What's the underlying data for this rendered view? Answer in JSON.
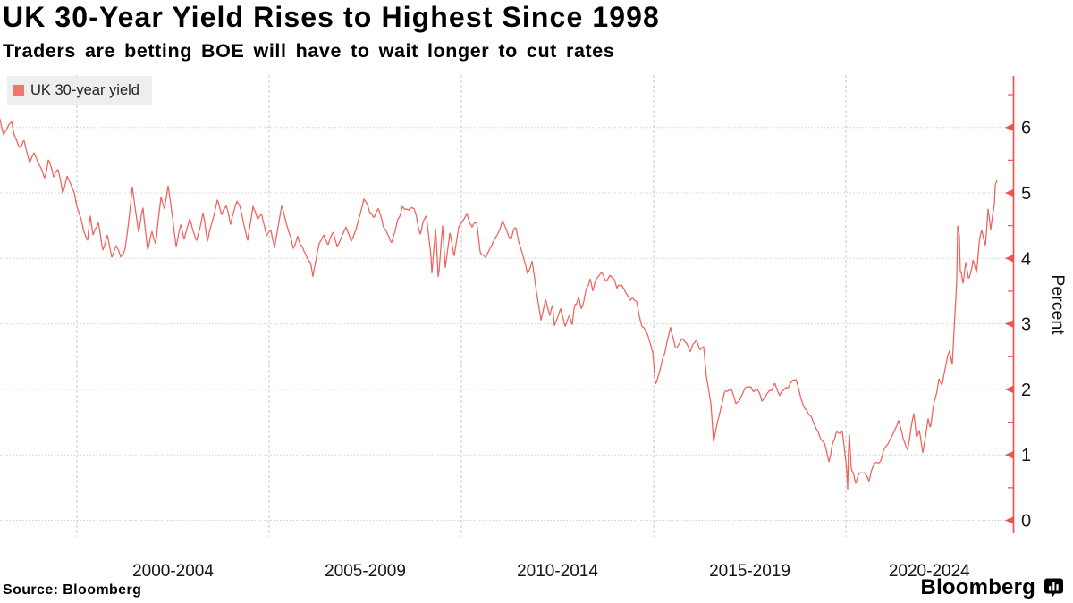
{
  "header": {
    "title": "UK 30-Year Yield Rises to Highest Since 1998",
    "subtitle": "Traders are betting BOE will have to wait longer to cut rates"
  },
  "legend": {
    "label": "UK 30-year yield",
    "color": "#f3736d"
  },
  "footer": {
    "source": "Source:  Bloomberg",
    "brand": "Bloomberg"
  },
  "chart_data": {
    "type": "line",
    "title": "UK 30-year yield",
    "ylabel": "Percent",
    "xlabel": "",
    "grid": "dotted-horizontal-dashed-vertical",
    "legend_position": "top-left",
    "ylim": [
      -0.2,
      6.8
    ],
    "x_range": [
      1998.0,
      2024.4
    ],
    "y_ticks": [
      0,
      1,
      2,
      3,
      4,
      5,
      6
    ],
    "y_minor_tick_step": 0.5,
    "x_gridline_years": [
      2000,
      2005,
      2010,
      2015,
      2020
    ],
    "x_tick_labels": [
      {
        "label": "2000-2004",
        "center_year": 2002.5
      },
      {
        "label": "2005-2009",
        "center_year": 2007.5
      },
      {
        "label": "2010-2014",
        "center_year": 2012.5
      },
      {
        "label": "2015-2019",
        "center_year": 2017.5
      },
      {
        "label": "2020-2024",
        "center_year": 2022.17
      }
    ],
    "axis_color": "#f0524c",
    "series": [
      {
        "name": "UK 30-year yield",
        "color": "#f1605b",
        "points": [
          [
            1998.0,
            6.18
          ],
          [
            1998.09,
            5.93
          ],
          [
            1998.19,
            6.04
          ],
          [
            1998.3,
            6.08
          ],
          [
            1998.42,
            5.8
          ],
          [
            1998.53,
            5.7
          ],
          [
            1998.63,
            5.79
          ],
          [
            1998.77,
            5.46
          ],
          [
            1998.88,
            5.6
          ],
          [
            1999.0,
            5.45
          ],
          [
            1999.16,
            5.26
          ],
          [
            1999.26,
            5.56
          ],
          [
            1999.4,
            5.29
          ],
          [
            1999.51,
            5.4
          ],
          [
            1999.63,
            5.06
          ],
          [
            1999.74,
            5.26
          ],
          [
            1999.93,
            4.95
          ],
          [
            2000.05,
            4.74
          ],
          [
            2000.16,
            4.5
          ],
          [
            2000.28,
            4.26
          ],
          [
            2000.35,
            4.67
          ],
          [
            2000.42,
            4.38
          ],
          [
            2000.56,
            4.54
          ],
          [
            2000.67,
            4.08
          ],
          [
            2000.79,
            4.33
          ],
          [
            2000.91,
            4.01
          ],
          [
            2001.02,
            4.22
          ],
          [
            2001.14,
            4.03
          ],
          [
            2001.26,
            4.15
          ],
          [
            2001.44,
            5.08
          ],
          [
            2001.6,
            4.38
          ],
          [
            2001.72,
            4.78
          ],
          [
            2001.84,
            4.17
          ],
          [
            2001.95,
            4.45
          ],
          [
            2002.05,
            4.25
          ],
          [
            2002.19,
            4.95
          ],
          [
            2002.28,
            4.75
          ],
          [
            2002.37,
            5.12
          ],
          [
            2002.49,
            4.6
          ],
          [
            2002.58,
            4.17
          ],
          [
            2002.7,
            4.45
          ],
          [
            2002.79,
            4.28
          ],
          [
            2002.93,
            4.57
          ],
          [
            2003.12,
            4.25
          ],
          [
            2003.28,
            4.69
          ],
          [
            2003.4,
            4.26
          ],
          [
            2003.65,
            4.92
          ],
          [
            2003.77,
            4.7
          ],
          [
            2003.88,
            4.85
          ],
          [
            2004.0,
            4.57
          ],
          [
            2004.16,
            4.92
          ],
          [
            2004.28,
            4.7
          ],
          [
            2004.44,
            4.28
          ],
          [
            2004.58,
            4.81
          ],
          [
            2004.7,
            4.6
          ],
          [
            2004.81,
            4.7
          ],
          [
            2004.93,
            4.33
          ],
          [
            2005.05,
            4.44
          ],
          [
            2005.14,
            4.17
          ],
          [
            2005.33,
            4.79
          ],
          [
            2005.51,
            4.4
          ],
          [
            2005.63,
            4.17
          ],
          [
            2005.74,
            4.35
          ],
          [
            2005.91,
            4.08
          ],
          [
            2006.07,
            3.92
          ],
          [
            2006.14,
            3.68
          ],
          [
            2006.3,
            4.26
          ],
          [
            2006.42,
            4.38
          ],
          [
            2006.53,
            4.2
          ],
          [
            2006.67,
            4.4
          ],
          [
            2006.77,
            4.17
          ],
          [
            2007.0,
            4.44
          ],
          [
            2007.14,
            4.2
          ],
          [
            2007.3,
            4.5
          ],
          [
            2007.47,
            4.95
          ],
          [
            2007.7,
            4.65
          ],
          [
            2007.84,
            4.74
          ],
          [
            2008.05,
            4.4
          ],
          [
            2008.19,
            4.23
          ],
          [
            2008.47,
            4.77
          ],
          [
            2008.63,
            4.67
          ],
          [
            2008.77,
            4.79
          ],
          [
            2008.93,
            4.46
          ],
          [
            2009.09,
            4.71
          ],
          [
            2009.21,
            4.08
          ],
          [
            2009.23,
            3.83
          ],
          [
            2009.33,
            4.54
          ],
          [
            2009.4,
            3.72
          ],
          [
            2009.51,
            4.58
          ],
          [
            2009.58,
            3.9
          ],
          [
            2009.7,
            4.4
          ],
          [
            2009.81,
            4.02
          ],
          [
            2009.93,
            4.51
          ],
          [
            2010.09,
            4.63
          ],
          [
            2010.14,
            4.72
          ],
          [
            2010.28,
            4.5
          ],
          [
            2010.4,
            4.6
          ],
          [
            2010.49,
            4.17
          ],
          [
            2010.63,
            4.05
          ],
          [
            2010.79,
            4.2
          ],
          [
            2010.93,
            4.4
          ],
          [
            2011.07,
            4.63
          ],
          [
            2011.3,
            4.31
          ],
          [
            2011.42,
            4.45
          ],
          [
            2011.49,
            4.23
          ],
          [
            2011.6,
            4.0
          ],
          [
            2011.72,
            3.72
          ],
          [
            2011.84,
            3.88
          ],
          [
            2011.95,
            3.45
          ],
          [
            2012.07,
            3.06
          ],
          [
            2012.19,
            3.41
          ],
          [
            2012.3,
            3.12
          ],
          [
            2012.37,
            3.28
          ],
          [
            2012.42,
            2.94
          ],
          [
            2012.58,
            3.21
          ],
          [
            2012.7,
            2.97
          ],
          [
            2012.81,
            3.1
          ],
          [
            2012.88,
            2.96
          ],
          [
            2012.95,
            3.26
          ],
          [
            2013.05,
            3.41
          ],
          [
            2013.12,
            3.2
          ],
          [
            2013.28,
            3.58
          ],
          [
            2013.35,
            3.65
          ],
          [
            2013.42,
            3.48
          ],
          [
            2013.53,
            3.72
          ],
          [
            2013.65,
            3.76
          ],
          [
            2013.74,
            3.6
          ],
          [
            2013.86,
            3.74
          ],
          [
            2013.98,
            3.67
          ],
          [
            2014.05,
            3.52
          ],
          [
            2014.16,
            3.62
          ],
          [
            2014.28,
            3.5
          ],
          [
            2014.4,
            3.42
          ],
          [
            2014.56,
            3.31
          ],
          [
            2014.63,
            3.1
          ],
          [
            2014.7,
            2.99
          ],
          [
            2014.86,
            2.87
          ],
          [
            2014.98,
            2.58
          ],
          [
            2015.05,
            2.08
          ],
          [
            2015.16,
            2.33
          ],
          [
            2015.37,
            2.71
          ],
          [
            2015.44,
            2.9
          ],
          [
            2015.56,
            2.6
          ],
          [
            2015.65,
            2.62
          ],
          [
            2015.74,
            2.75
          ],
          [
            2015.85,
            2.72
          ],
          [
            2015.95,
            2.55
          ],
          [
            2016.1,
            2.75
          ],
          [
            2016.2,
            2.62
          ],
          [
            2016.3,
            2.7
          ],
          [
            2016.37,
            2.25
          ],
          [
            2016.49,
            1.8
          ],
          [
            2016.56,
            1.21
          ],
          [
            2016.67,
            1.57
          ],
          [
            2016.77,
            1.8
          ],
          [
            2016.84,
            1.97
          ],
          [
            2017.02,
            2.02
          ],
          [
            2017.14,
            1.8
          ],
          [
            2017.37,
            1.97
          ],
          [
            2017.6,
            1.94
          ],
          [
            2017.7,
            2.0
          ],
          [
            2017.81,
            1.8
          ],
          [
            2018.0,
            1.96
          ],
          [
            2018.16,
            2.08
          ],
          [
            2018.28,
            1.9
          ],
          [
            2018.51,
            2.1
          ],
          [
            2018.7,
            2.12
          ],
          [
            2018.81,
            1.9
          ],
          [
            2018.88,
            1.8
          ],
          [
            2019.0,
            1.67
          ],
          [
            2019.23,
            1.39
          ],
          [
            2019.44,
            1.16
          ],
          [
            2019.56,
            0.89
          ],
          [
            2019.67,
            1.16
          ],
          [
            2019.74,
            1.28
          ],
          [
            2019.91,
            1.3
          ],
          [
            2020.02,
            0.76
          ],
          [
            2020.05,
            0.42
          ],
          [
            2020.08,
            1.45
          ],
          [
            2020.14,
            0.76
          ],
          [
            2020.21,
            0.67
          ],
          [
            2020.26,
            0.58
          ],
          [
            2020.33,
            0.67
          ],
          [
            2020.49,
            0.71
          ],
          [
            2020.6,
            0.58
          ],
          [
            2020.67,
            0.78
          ],
          [
            2020.74,
            0.85
          ],
          [
            2020.91,
            0.89
          ],
          [
            2020.98,
            1.03
          ],
          [
            2021.07,
            1.12
          ],
          [
            2021.2,
            1.28
          ],
          [
            2021.37,
            1.54
          ],
          [
            2021.49,
            1.22
          ],
          [
            2021.6,
            1.03
          ],
          [
            2021.72,
            1.44
          ],
          [
            2021.77,
            1.56
          ],
          [
            2021.84,
            1.22
          ],
          [
            2021.91,
            1.33
          ],
          [
            2022.0,
            0.99
          ],
          [
            2022.07,
            1.22
          ],
          [
            2022.14,
            1.5
          ],
          [
            2022.2,
            1.38
          ],
          [
            2022.26,
            1.67
          ],
          [
            2022.35,
            1.9
          ],
          [
            2022.42,
            2.12
          ],
          [
            2022.5,
            2.02
          ],
          [
            2022.58,
            2.31
          ],
          [
            2022.65,
            2.58
          ],
          [
            2022.7,
            2.67
          ],
          [
            2022.77,
            2.4
          ],
          [
            2022.81,
            2.86
          ],
          [
            2022.84,
            3.21
          ],
          [
            2022.88,
            3.58
          ],
          [
            2022.905,
            4.4
          ],
          [
            2022.92,
            5.1
          ],
          [
            2022.94,
            3.8
          ],
          [
            2022.96,
            4.6
          ],
          [
            2022.98,
            3.62
          ],
          [
            2023.0,
            3.81
          ],
          [
            2023.05,
            3.65
          ],
          [
            2023.12,
            3.99
          ],
          [
            2023.19,
            3.72
          ],
          [
            2023.28,
            3.85
          ],
          [
            2023.31,
            4.03
          ],
          [
            2023.4,
            3.78
          ],
          [
            2023.47,
            4.26
          ],
          [
            2023.54,
            4.4
          ],
          [
            2023.63,
            4.19
          ],
          [
            2023.7,
            4.74
          ],
          [
            2023.77,
            4.44
          ],
          [
            2023.81,
            4.67
          ],
          [
            2023.86,
            4.81
          ],
          [
            2023.88,
            5.11
          ],
          [
            2023.93,
            5.18
          ],
          [
            2023.95,
            5.1
          ]
        ]
      }
    ]
  }
}
